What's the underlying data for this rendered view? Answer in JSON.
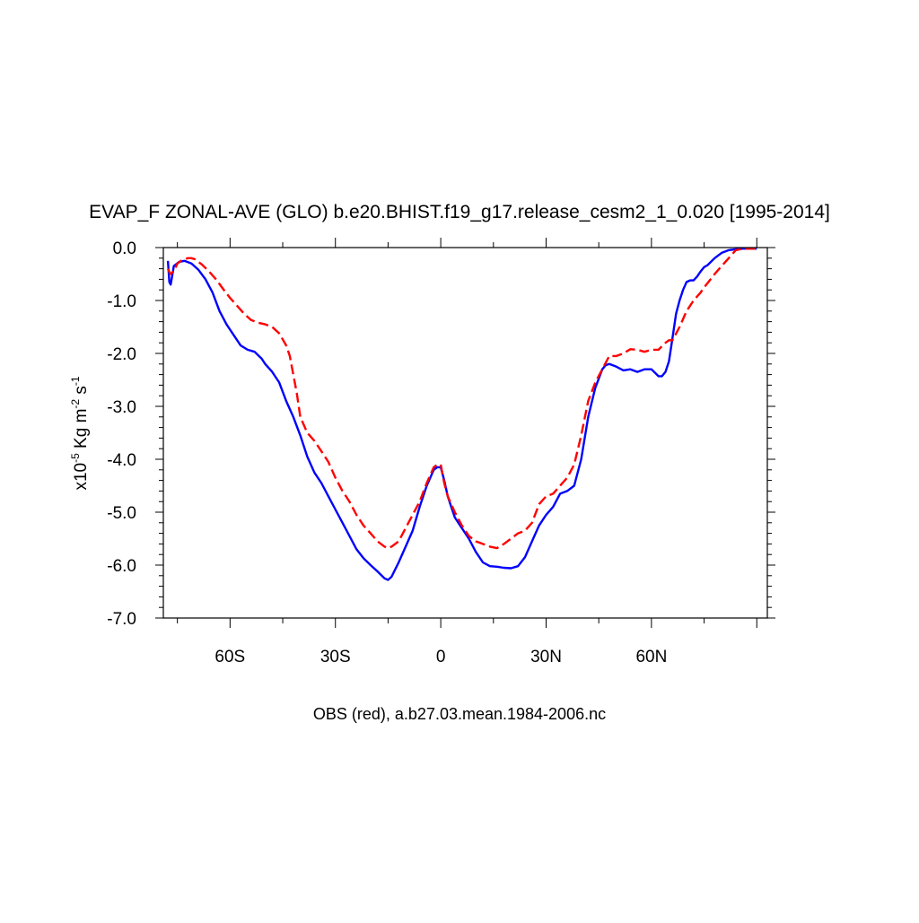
{
  "chart_data": {
    "type": "line",
    "title": "EVAP_F ZONAL-AVE (GLO) b.e20.BHIST.f19_g17.release_cesm2_1_0.020 [1995-2014]",
    "ylabel": {
      "prefix": "x10",
      "exp1": "-5",
      "mid": " Kg m",
      "exp2": "-2",
      "mid2": " s",
      "exp3": "-1"
    },
    "footer": "OBS (red), a.b27.03.mean.1984-2006.nc",
    "xlim": [
      -79,
      93
    ],
    "ylim": [
      -7.0,
      0.0
    ],
    "x_ticks": [
      {
        "value": -60,
        "label": "60S"
      },
      {
        "value": -30,
        "label": "30S"
      },
      {
        "value": 0,
        "label": "0"
      },
      {
        "value": 30,
        "label": "30N"
      },
      {
        "value": 60,
        "label": "60N"
      }
    ],
    "y_ticks": [
      {
        "value": 0.0,
        "label": "0.0"
      },
      {
        "value": -1.0,
        "label": "-1.0"
      },
      {
        "value": -2.0,
        "label": "-2.0"
      },
      {
        "value": -3.0,
        "label": "-3.0"
      },
      {
        "value": -4.0,
        "label": "-4.0"
      },
      {
        "value": -5.0,
        "label": "-5.0"
      },
      {
        "value": -6.0,
        "label": "-6.0"
      },
      {
        "value": -7.0,
        "label": "-7.0"
      }
    ],
    "grid": false,
    "legend": "none",
    "series": [
      {
        "color": "#0000ff",
        "dash": "solid",
        "x": [
          -77.7,
          -77.3,
          -76.9,
          -76.0,
          -74.5,
          -73.0,
          -71.0,
          -69.0,
          -67.0,
          -65.0,
          -63.0,
          -61.0,
          -59.0,
          -57.0,
          -55.0,
          -53.0,
          -51.0,
          -50.0,
          -48.0,
          -46.0,
          -44.0,
          -42.0,
          -40.0,
          -38.0,
          -36.0,
          -34.0,
          -32.0,
          -30.0,
          -28.0,
          -26.0,
          -24.0,
          -22.0,
          -20.0,
          -18.0,
          -16.0,
          -15.0,
          -14.0,
          -12.0,
          -10.0,
          -8.0,
          -6.0,
          -4.0,
          -2.0,
          -1.0,
          0.0,
          1.0,
          2.0,
          3.0,
          4.0,
          6.0,
          8.0,
          10.0,
          12.0,
          14.0,
          16.0,
          18.0,
          20.0,
          22.0,
          24.0,
          26.0,
          28.0,
          30.0,
          32.0,
          34.0,
          36.0,
          38.0,
          40.0,
          42.0,
          44.0,
          46.0,
          47.0,
          48.0,
          50.0,
          52.0,
          54.0,
          56.0,
          58.0,
          60.0,
          62.0,
          63.0,
          64.0,
          65.0,
          66.0,
          67.0,
          68.0,
          69.0,
          70.0,
          71.0,
          72.0,
          73.0,
          74.0,
          75.0,
          76.0,
          78.0,
          80.0,
          82.0,
          84.0,
          86.0,
          88.0,
          90.0
        ],
        "y": [
          -0.25,
          -0.65,
          -0.7,
          -0.35,
          -0.27,
          -0.25,
          -0.3,
          -0.42,
          -0.6,
          -0.85,
          -1.2,
          -1.45,
          -1.65,
          -1.85,
          -1.93,
          -1.97,
          -2.1,
          -2.2,
          -2.35,
          -2.55,
          -2.9,
          -3.2,
          -3.55,
          -3.95,
          -4.25,
          -4.45,
          -4.7,
          -4.95,
          -5.2,
          -5.45,
          -5.7,
          -5.87,
          -6.0,
          -6.12,
          -6.25,
          -6.28,
          -6.22,
          -5.95,
          -5.65,
          -5.35,
          -4.9,
          -4.5,
          -4.2,
          -4.15,
          -4.15,
          -4.4,
          -4.7,
          -4.9,
          -5.1,
          -5.3,
          -5.5,
          -5.75,
          -5.95,
          -6.02,
          -6.03,
          -6.05,
          -6.06,
          -6.02,
          -5.85,
          -5.55,
          -5.25,
          -5.05,
          -4.9,
          -4.65,
          -4.6,
          -4.5,
          -4.0,
          -3.2,
          -2.65,
          -2.3,
          -2.22,
          -2.2,
          -2.25,
          -2.32,
          -2.3,
          -2.35,
          -2.3,
          -2.3,
          -2.43,
          -2.43,
          -2.35,
          -2.15,
          -1.7,
          -1.25,
          -1.0,
          -0.8,
          -0.65,
          -0.62,
          -0.62,
          -0.55,
          -0.45,
          -0.37,
          -0.33,
          -0.2,
          -0.1,
          -0.05,
          -0.03,
          -0.02,
          -0.02,
          -0.02
        ]
      },
      {
        "color": "#ff0000",
        "dash": "dashed",
        "x": [
          -77.7,
          -77.0,
          -76.0,
          -75.0,
          -74.0,
          -73.0,
          -72.0,
          -71.0,
          -70.0,
          -69.0,
          -68.0,
          -66.0,
          -64.0,
          -62.0,
          -60.0,
          -58.0,
          -56.0,
          -54.0,
          -52.0,
          -50.0,
          -48.0,
          -46.0,
          -44.0,
          -43.0,
          -42.0,
          -41.0,
          -40.0,
          -38.0,
          -36.0,
          -34.0,
          -32.0,
          -30.0,
          -28.0,
          -26.0,
          -24.0,
          -22.0,
          -20.0,
          -18.0,
          -16.0,
          -15.0,
          -14.0,
          -12.0,
          -10.0,
          -8.0,
          -6.0,
          -4.0,
          -2.0,
          -1.0,
          0.0,
          1.0,
          2.0,
          4.0,
          6.0,
          8.0,
          10.0,
          12.0,
          14.0,
          16.0,
          18.0,
          20.0,
          22.0,
          24.0,
          26.0,
          28.0,
          30.0,
          32.0,
          34.0,
          36.0,
          38.0,
          40.0,
          42.0,
          44.0,
          46.0,
          48.0,
          50.0,
          52.0,
          54.0,
          56.0,
          58.0,
          60.0,
          62.0,
          64.0,
          65.0,
          66.0,
          68.0,
          70.0,
          72.0,
          74.0,
          75.0,
          76.0,
          78.0,
          80.0,
          82.0,
          84.0,
          86.0,
          88.0,
          90.0
        ],
        "y": [
          -0.4,
          -0.5,
          -0.45,
          -0.3,
          -0.25,
          -0.22,
          -0.2,
          -0.2,
          -0.22,
          -0.27,
          -0.32,
          -0.45,
          -0.6,
          -0.78,
          -0.95,
          -1.1,
          -1.25,
          -1.37,
          -1.42,
          -1.45,
          -1.5,
          -1.62,
          -1.85,
          -2.05,
          -2.4,
          -2.75,
          -3.2,
          -3.5,
          -3.65,
          -3.85,
          -4.05,
          -4.35,
          -4.6,
          -4.8,
          -5.05,
          -5.25,
          -5.4,
          -5.55,
          -5.65,
          -5.68,
          -5.65,
          -5.55,
          -5.3,
          -5.05,
          -4.8,
          -4.45,
          -4.15,
          -4.1,
          -4.1,
          -4.45,
          -4.7,
          -5.0,
          -5.25,
          -5.45,
          -5.55,
          -5.6,
          -5.65,
          -5.68,
          -5.6,
          -5.5,
          -5.4,
          -5.35,
          -5.2,
          -4.85,
          -4.7,
          -4.65,
          -4.5,
          -4.35,
          -4.1,
          -3.55,
          -2.9,
          -2.55,
          -2.3,
          -2.05,
          -2.05,
          -2.0,
          -1.92,
          -1.93,
          -1.97,
          -1.93,
          -1.93,
          -1.8,
          -1.75,
          -1.75,
          -1.5,
          -1.2,
          -1.0,
          -0.85,
          -0.75,
          -0.67,
          -0.5,
          -0.35,
          -0.2,
          -0.05,
          -0.02,
          -0.02,
          -0.02
        ]
      }
    ]
  }
}
